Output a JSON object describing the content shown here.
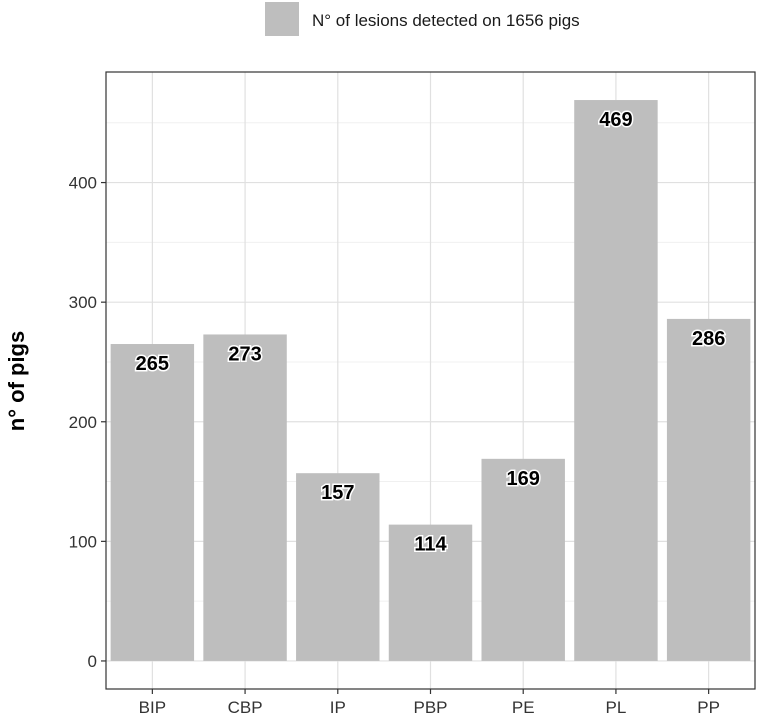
{
  "legend": {
    "label": "N° of lesions detected on 1656 pigs",
    "color": "#bebebe"
  },
  "chart_data": {
    "type": "bar",
    "categories": [
      "BIP",
      "CBP",
      "IP",
      "PBP",
      "PE",
      "PL",
      "PP"
    ],
    "values": [
      265,
      273,
      157,
      114,
      169,
      469,
      286
    ],
    "data_labels": [
      "265",
      "273",
      "157",
      "114",
      "169",
      "469",
      "286"
    ],
    "title": "",
    "xlabel": "",
    "ylabel": "n° of pigs",
    "ylim": [
      -23.45,
      492.45
    ],
    "yticks": [
      0,
      100,
      200,
      300,
      400
    ],
    "ytick_labels": [
      "0",
      "100",
      "200",
      "300",
      "400"
    ],
    "grid": true,
    "legend_position": "top",
    "colors": {
      "bar": "#bebebe",
      "grid_major": "#e0e0e0",
      "grid_minor": "#f0f0f0",
      "panel_border": "#333333"
    }
  }
}
